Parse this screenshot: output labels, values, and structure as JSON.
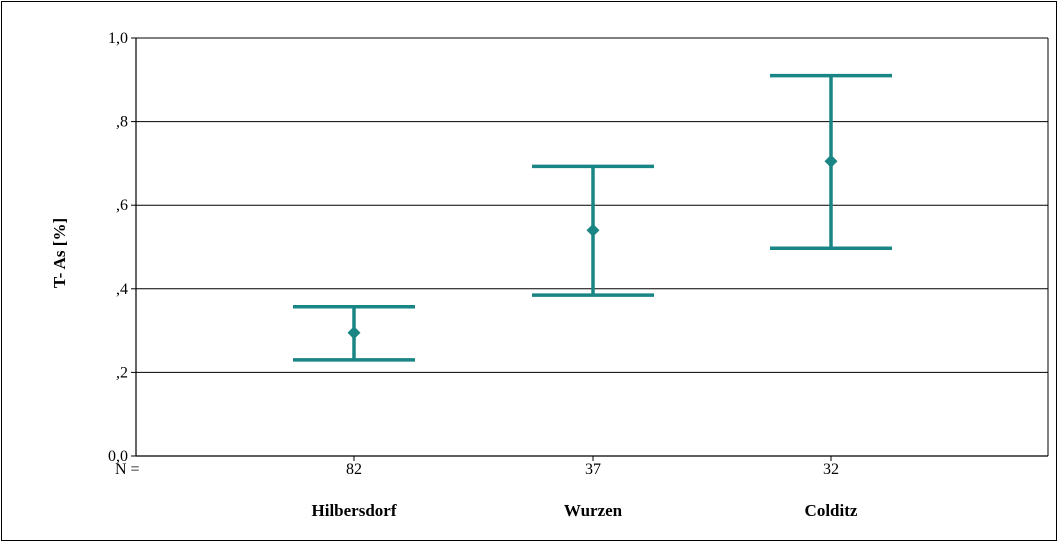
{
  "chart_data": {
    "type": "errorbar",
    "ylabel": "T- As [%]",
    "ylim": [
      0,
      1.0
    ],
    "yticks": [
      {
        "value": 0.0,
        "label": "0,0"
      },
      {
        "value": 0.2,
        "label": ",2"
      },
      {
        "value": 0.4,
        "label": ",4"
      },
      {
        "value": 0.6,
        "label": ",6"
      },
      {
        "value": 0.8,
        "label": ",8"
      },
      {
        "value": 1.0,
        "label": "1,0"
      }
    ],
    "grid": true,
    "n_prefix": "N =",
    "categories": [
      "Hilbersdorf",
      "Wurzen",
      "Colditz"
    ],
    "n": [
      "82",
      "37",
      "32"
    ],
    "mean": [
      0.295,
      0.54,
      0.705
    ],
    "lower": [
      0.23,
      0.385,
      0.497
    ],
    "upper": [
      0.357,
      0.693,
      0.91
    ],
    "color": "#1a8585"
  }
}
